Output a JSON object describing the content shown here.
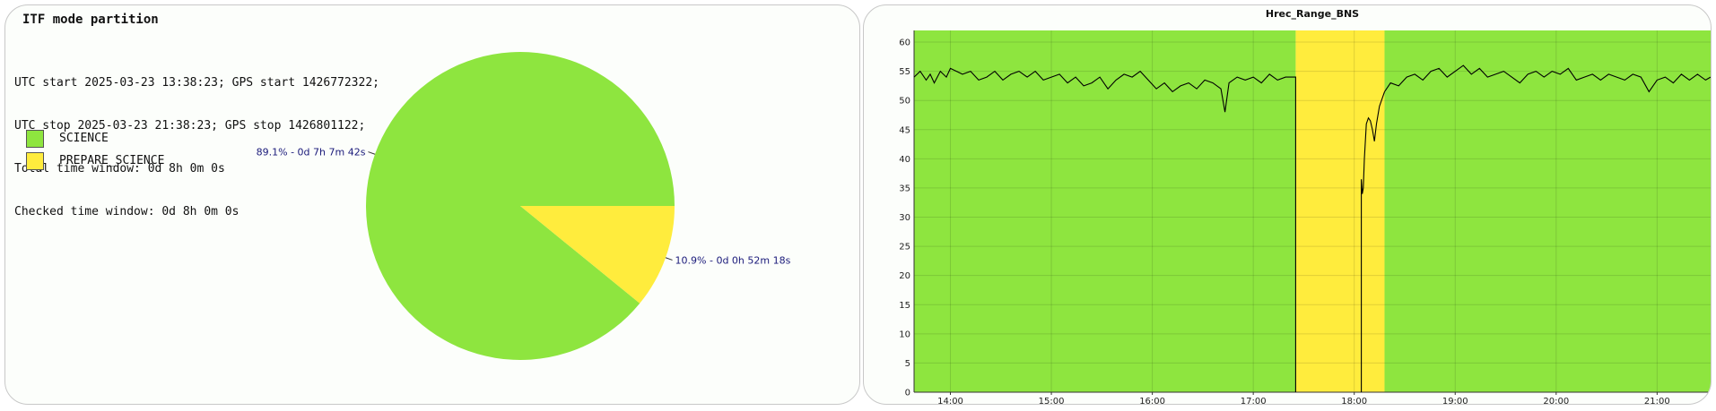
{
  "left": {
    "title": "ITF mode partition",
    "info_lines": [
      "UTC start 2025-03-23 13:38:23; GPS start 1426772322;",
      "UTC stop 2025-03-23 21:38:23; GPS stop 1426801122;",
      "Total time window: 0d 8h 0m 0s",
      "Checked time window: 0d 8h 0m 0s"
    ],
    "legend": [
      {
        "label": "SCIENCE",
        "color": "#8ee53f"
      },
      {
        "label": "PREPARE_SCIENCE",
        "color": "#ffec3d"
      }
    ]
  },
  "chart_data": [
    {
      "type": "pie",
      "slices": [
        {
          "name": "SCIENCE",
          "value": 89.1,
          "label": "89.1% - 0d 7h 7m 42s",
          "color": "#8ee53f"
        },
        {
          "name": "PREPARE_SCIENCE",
          "value": 10.9,
          "label": "10.9% - 0d 0h 52m 18s",
          "color": "#ffec3d"
        }
      ]
    },
    {
      "type": "line",
      "title": "Hrec_Range_BNS",
      "xlim": [
        13.64,
        21.53
      ],
      "ylim": [
        0,
        62
      ],
      "x_ticks": [
        "14:00",
        "15:00",
        "16:00",
        "17:00",
        "18:00",
        "19:00",
        "20:00",
        "21:00"
      ],
      "y_ticks": [
        0,
        5,
        10,
        15,
        20,
        25,
        30,
        35,
        40,
        45,
        50,
        55,
        60
      ],
      "grid": true,
      "background_bands": [
        {
          "mode": "SCIENCE",
          "start": 13.64,
          "end": 17.42,
          "color": "#8ee53f"
        },
        {
          "mode": "PREPARE_SCIENCE",
          "start": 17.42,
          "end": 18.3,
          "color": "#ffec3d"
        },
        {
          "mode": "SCIENCE",
          "start": 18.3,
          "end": 21.53,
          "color": "#8ee53f"
        }
      ],
      "series": [
        {
          "color": "#000000",
          "segments": [
            {
              "x": [
                13.64,
                13.7,
                13.76,
                13.8,
                13.84,
                13.9,
                13.96,
                14.0,
                14.06,
                14.12,
                14.2,
                14.28,
                14.36,
                14.44,
                14.52,
                14.6,
                14.68,
                14.76,
                14.84,
                14.92,
                15.0,
                15.08,
                15.16,
                15.24,
                15.32,
                15.4,
                15.48,
                15.56,
                15.64,
                15.72,
                15.8,
                15.88,
                15.96,
                16.04,
                16.12,
                16.2,
                16.28,
                16.36,
                16.44,
                16.52,
                16.6,
                16.68,
                16.72,
                16.76,
                16.84,
                16.92,
                17.0,
                17.08,
                17.16,
                17.24,
                17.32,
                17.42,
                17.42
              ],
              "y": [
                54,
                55,
                53.5,
                54.5,
                53,
                55,
                54,
                55.5,
                55,
                54.5,
                55,
                53.5,
                54,
                55,
                53.5,
                54.5,
                55,
                54,
                55,
                53.5,
                54,
                54.5,
                53,
                54,
                52.5,
                53,
                54,
                52,
                53.5,
                54.5,
                54,
                55,
                53.5,
                52,
                53,
                51.5,
                52.5,
                53,
                52,
                53.5,
                53,
                52,
                48,
                53,
                54,
                53.5,
                54,
                53,
                54.5,
                53.5,
                54,
                54,
                0
              ]
            },
            {
              "x": [
                18.07,
                18.07,
                18.08,
                18.09,
                18.1,
                18.12,
                18.14,
                18.16,
                18.18,
                18.2,
                18.22,
                18.25,
                18.3
              ],
              "y": [
                0,
                36.5,
                34,
                35,
                40,
                46,
                47,
                46.5,
                45,
                43,
                46,
                49,
                51.5
              ]
            },
            {
              "x": [
                18.3,
                18.36,
                18.44,
                18.52,
                18.6,
                18.68,
                18.76,
                18.84,
                18.92,
                19.0,
                19.08,
                19.16,
                19.24,
                19.32,
                19.4,
                19.48,
                19.56,
                19.64,
                19.72,
                19.8,
                19.88,
                19.96,
                20.04,
                20.12,
                20.2,
                20.28,
                20.36,
                20.44,
                20.52,
                20.6,
                20.68,
                20.76,
                20.84,
                20.92,
                21.0,
                21.08,
                21.16,
                21.24,
                21.32,
                21.4,
                21.48,
                21.53
              ],
              "y": [
                51.5,
                53,
                52.5,
                54,
                54.5,
                53.5,
                55,
                55.5,
                54,
                55,
                56,
                54.5,
                55.5,
                54,
                54.5,
                55,
                54,
                53,
                54.5,
                55,
                54,
                55,
                54.5,
                55.5,
                53.5,
                54,
                54.5,
                53.5,
                54.5,
                54,
                53.5,
                54.5,
                54,
                51.5,
                53.5,
                54,
                53,
                54.5,
                53.5,
                54.5,
                53.5,
                54
              ]
            }
          ]
        }
      ]
    }
  ]
}
